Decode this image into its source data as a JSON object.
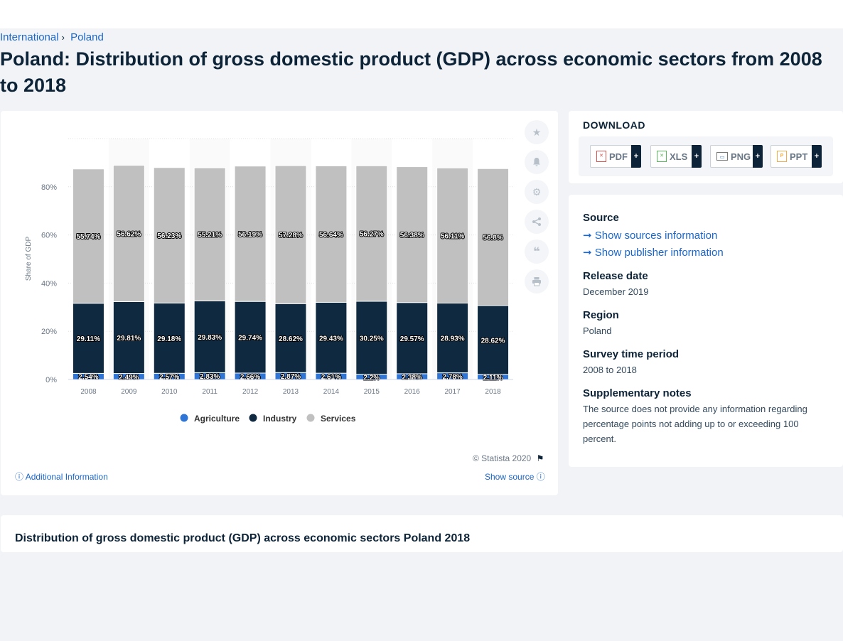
{
  "breadcrumb": {
    "items": [
      "International",
      "Poland"
    ]
  },
  "page_title": "Poland: Distribution of gross domestic product (GDP) across economic sectors from 2008 to 2018",
  "actions": {
    "icons": [
      "star-icon",
      "bell-icon",
      "gear-icon",
      "share-icon",
      "quote-icon",
      "print-icon"
    ]
  },
  "download": {
    "title": "DOWNLOAD",
    "buttons": [
      {
        "label": "PDF",
        "plus": "+"
      },
      {
        "label": "XLS",
        "plus": "+"
      },
      {
        "label": "PNG",
        "plus": "+"
      },
      {
        "label": "PPT",
        "plus": "+"
      }
    ]
  },
  "info": {
    "source_heading": "Source",
    "show_sources": "Show sources information",
    "show_publisher": "Show publisher information",
    "release_heading": "Release date",
    "release_value": "December 2019",
    "region_heading": "Region",
    "region_value": "Poland",
    "survey_heading": "Survey time period",
    "survey_value": "2008 to 2018",
    "notes_heading": "Supplementary notes",
    "notes_value": "The source does not provide any information regarding percentage points not adding up to or exceeding 100 percent."
  },
  "footer": {
    "copyright": "© Statista 2020",
    "additional_info": "Additional Information",
    "show_source": "Show source"
  },
  "bottom_title": "Distribution of gross domestic product (GDP) across economic sectors Poland 2018",
  "colors": {
    "agriculture": "#2f75d6",
    "industry": "#0e2940",
    "services": "#c0c0c0",
    "accent": "#1a66c9"
  },
  "chart_data": {
    "type": "bar",
    "stacked": true,
    "categories": [
      "2008",
      "2009",
      "2010",
      "2011",
      "2012",
      "2013",
      "2014",
      "2015",
      "2016",
      "2017",
      "2018"
    ],
    "series": [
      {
        "name": "Agriculture",
        "values": [
          2.54,
          2.49,
          2.57,
          2.83,
          2.66,
          2.87,
          2.61,
          2.2,
          2.38,
          2.78,
          2.11
        ],
        "labels": [
          "2.54%",
          "2.49%",
          "2.57%",
          "2.83%",
          "2.66%",
          "2.87%",
          "2.61%",
          "2.2%",
          "2.38%",
          "2.78%",
          "2.11%"
        ]
      },
      {
        "name": "Industry",
        "values": [
          29.11,
          29.81,
          29.18,
          29.83,
          29.74,
          28.62,
          29.43,
          30.25,
          29.57,
          28.93,
          28.62
        ],
        "labels": [
          "29.11%",
          "29.81%",
          "29.18%",
          "29.83%",
          "29.74%",
          "28.62%",
          "29.43%",
          "30.25%",
          "29.57%",
          "28.93%",
          "28.62%"
        ]
      },
      {
        "name": "Services",
        "values": [
          55.74,
          56.62,
          56.23,
          55.21,
          56.19,
          57.28,
          56.64,
          56.27,
          56.38,
          56.11,
          56.8
        ],
        "labels": [
          "55.74%",
          "56.62%",
          "56.23%",
          "55.21%",
          "56.19%",
          "57.28%",
          "56.64%",
          "56.27%",
          "56.38%",
          "56.11%",
          "56.8%"
        ]
      }
    ],
    "ylabel": "Share of GDP",
    "ylim": [
      0,
      100
    ],
    "yticks": [
      0,
      20,
      40,
      60,
      80
    ],
    "ytick_labels": [
      "0%",
      "20%",
      "40%",
      "60%",
      "80%"
    ],
    "legend_position": "bottom",
    "grid": true
  }
}
